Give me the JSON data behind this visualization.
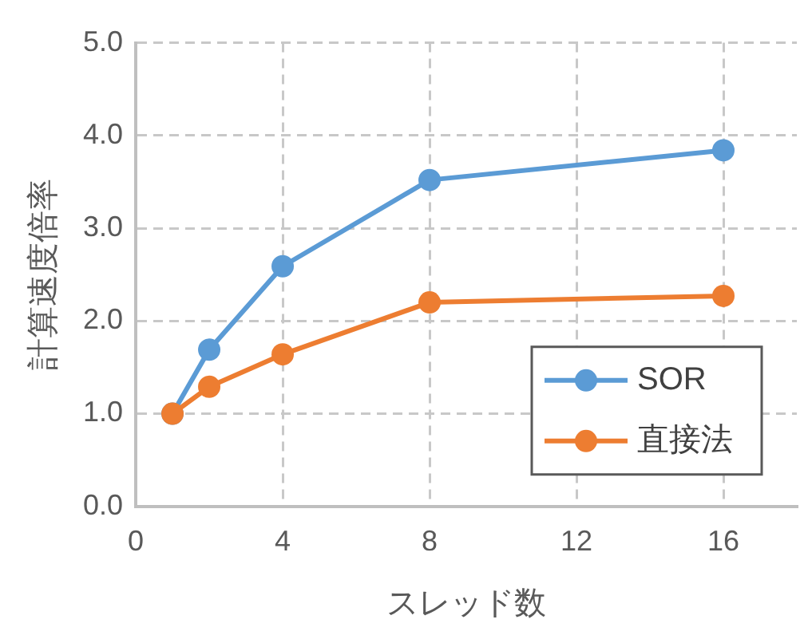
{
  "chart_data": {
    "type": "line",
    "xlabel": "スレッド数",
    "ylabel": "計算速度倍率",
    "x": [
      1,
      2,
      4,
      8,
      16
    ],
    "series": [
      {
        "name": "SOR",
        "color": "#5b9bd5",
        "values": [
          1.0,
          1.69,
          2.59,
          3.52,
          3.84
        ]
      },
      {
        "name": "直接法",
        "color": "#ed7d31",
        "values": [
          1.0,
          1.29,
          1.64,
          2.2,
          2.27
        ]
      }
    ],
    "xlim": [
      0,
      18
    ],
    "xticks": [
      0,
      4,
      8,
      12,
      16
    ],
    "ylim": [
      0,
      5
    ],
    "yticks": [
      {
        "value": 0,
        "label": "0.0"
      },
      {
        "value": 1,
        "label": "1.0"
      },
      {
        "value": 2,
        "label": "2.0"
      },
      {
        "value": 3,
        "label": "3.0"
      },
      {
        "value": 4,
        "label": "4.0"
      },
      {
        "value": 5,
        "label": "5.0"
      }
    ],
    "grid": true,
    "legend": "bottom right",
    "marker": "circle",
    "line_style": "solid"
  }
}
